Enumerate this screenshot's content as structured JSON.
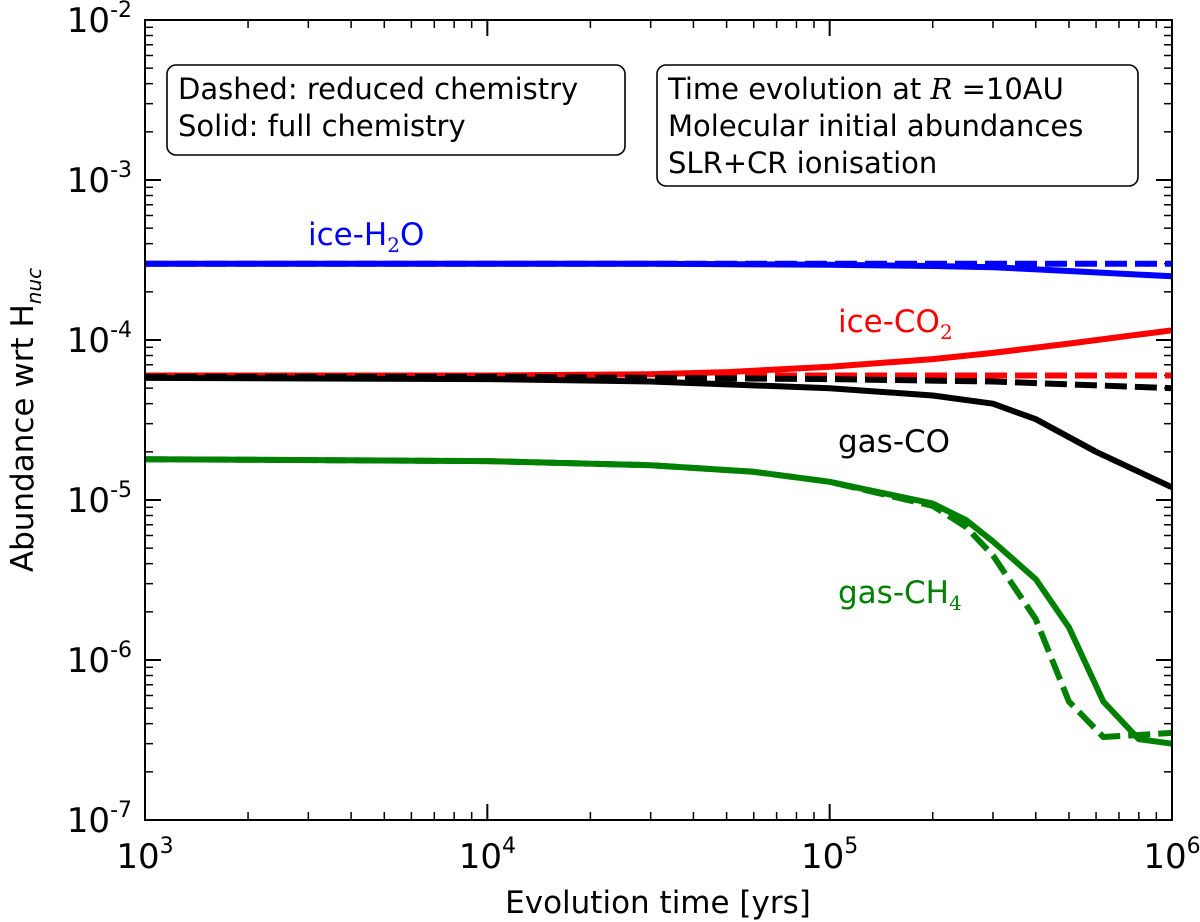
{
  "chart_data": {
    "type": "line",
    "xscale": "log",
    "yscale": "log",
    "xlim": [
      1000,
      1000000
    ],
    "ylim": [
      1e-07,
      0.01
    ],
    "xlabel": "Evolution time [yrs]",
    "ylabel": {
      "main": "Abundance wrt H",
      "sub": "nuc"
    },
    "x_ticks": [
      {
        "value": 1000,
        "base": "10",
        "exp": "3"
      },
      {
        "value": 10000,
        "base": "10",
        "exp": "4"
      },
      {
        "value": 100000,
        "base": "10",
        "exp": "5"
      },
      {
        "value": 1000000,
        "base": "10",
        "exp": "6"
      }
    ],
    "y_ticks": [
      {
        "value": 1e-07,
        "base": "10",
        "exp": "-7"
      },
      {
        "value": 1e-06,
        "base": "10",
        "exp": "-6"
      },
      {
        "value": 1e-05,
        "base": "10",
        "exp": "-5"
      },
      {
        "value": 0.0001,
        "base": "10",
        "exp": "-4"
      },
      {
        "value": 0.001,
        "base": "10",
        "exp": "-3"
      },
      {
        "value": 0.01,
        "base": "10",
        "exp": "-2"
      }
    ],
    "grid": false,
    "legend_box": {
      "lines": [
        "Dashed: reduced chemistry",
        "Solid: full chemistry"
      ],
      "placement": "top-left"
    },
    "info_box": {
      "line1_prefix": "Time evolution at ",
      "line1_math": "R",
      "line1_suffix": " =10AU",
      "line2": "Molecular initial abundances",
      "line3": "SLR+CR ionisation",
      "placement": "top-right"
    },
    "series": [
      {
        "name": "ice-H2O",
        "label_main": "ice-H",
        "label_sub": "2",
        "label_tail": "O",
        "color": "#0000ff",
        "style": "solid",
        "x": [
          1000,
          10000,
          30000,
          100000,
          200000,
          300000,
          500000,
          1000000
        ],
        "y": [
          0.0003,
          0.0003,
          0.0003,
          0.000295,
          0.00029,
          0.000285,
          0.00027,
          0.00025
        ]
      },
      {
        "name": "ice-H2O",
        "color": "#0000ff",
        "style": "dashed",
        "x": [
          1000,
          10000,
          100000,
          1000000
        ],
        "y": [
          0.0003,
          0.0003,
          0.0003,
          0.0003
        ]
      },
      {
        "name": "ice-CO2",
        "label_main": "ice-CO",
        "label_sub": "2",
        "label_tail": "",
        "color": "#ff0000",
        "style": "solid",
        "x": [
          1000,
          10000,
          30000,
          50000,
          100000,
          200000,
          300000,
          500000,
          1000000
        ],
        "y": [
          6e-05,
          6e-05,
          6.1e-05,
          6.3e-05,
          6.8e-05,
          7.6e-05,
          8.3e-05,
          9.5e-05,
          0.000115
        ]
      },
      {
        "name": "ice-CO2",
        "color": "#ff0000",
        "style": "dashed",
        "x": [
          1000,
          10000,
          100000,
          1000000
        ],
        "y": [
          6e-05,
          6e-05,
          6e-05,
          6e-05
        ]
      },
      {
        "name": "gas-CO",
        "label_main": "gas-CO",
        "label_sub": "",
        "label_tail": "",
        "color": "#000000",
        "style": "solid",
        "x": [
          1000,
          10000,
          30000,
          100000,
          200000,
          300000,
          400000,
          600000,
          800000,
          1000000
        ],
        "y": [
          5.8e-05,
          5.7e-05,
          5.5e-05,
          5e-05,
          4.5e-05,
          4e-05,
          3.2e-05,
          2e-05,
          1.5e-05,
          1.2e-05
        ]
      },
      {
        "name": "gas-CO",
        "color": "#000000",
        "style": "dashed",
        "x": [
          1000,
          10000,
          100000,
          300000,
          1000000
        ],
        "y": [
          5.9e-05,
          5.9e-05,
          5.7e-05,
          5.5e-05,
          5e-05
        ]
      },
      {
        "name": "gas-CH4",
        "label_main": "gas-CH",
        "label_sub": "4",
        "label_tail": "",
        "color": "#008000",
        "style": "solid",
        "x": [
          1000,
          10000,
          30000,
          60000,
          100000,
          200000,
          250000,
          300000,
          400000,
          500000,
          630000,
          800000,
          1000000
        ],
        "y": [
          1.8e-05,
          1.75e-05,
          1.65e-05,
          1.5e-05,
          1.3e-05,
          9.5e-06,
          7.5e-06,
          5.5e-06,
          3.2e-06,
          1.6e-06,
          5.5e-07,
          3.2e-07,
          3e-07
        ]
      },
      {
        "name": "gas-CH4",
        "color": "#008000",
        "style": "dashed",
        "x": [
          1000,
          10000,
          30000,
          60000,
          100000,
          200000,
          250000,
          300000,
          400000,
          500000,
          630000,
          800000,
          1000000
        ],
        "y": [
          1.8e-05,
          1.75e-05,
          1.65e-05,
          1.5e-05,
          1.3e-05,
          9.2e-06,
          6.8e-06,
          4.5e-06,
          1.8e-06,
          5.5e-07,
          3.3e-07,
          3.4e-07,
          3.5e-07
        ]
      }
    ]
  }
}
